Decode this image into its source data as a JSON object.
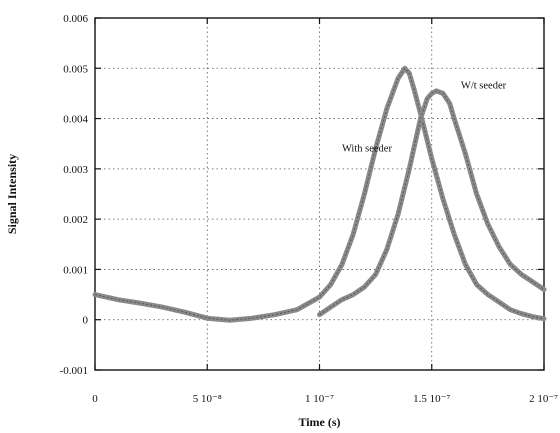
{
  "chart_data": {
    "type": "line",
    "title": "",
    "xlabel": "Time (s)",
    "ylabel": "Signal Intensity",
    "xlim": [
      0,
      2e-07
    ],
    "ylim": [
      -0.001,
      0.006
    ],
    "x_ticks": [
      {
        "value": 0,
        "label": "0"
      },
      {
        "value": 5e-08,
        "label": "5 10⁻⁸"
      },
      {
        "value": 1e-07,
        "label": "1 10⁻⁷"
      },
      {
        "value": 1.5e-07,
        "label": "1.5 10⁻⁷"
      },
      {
        "value": 2e-07,
        "label": "2 10⁻⁷"
      }
    ],
    "y_ticks": [
      {
        "value": -0.001,
        "label": "-0.001"
      },
      {
        "value": 0,
        "label": "0"
      },
      {
        "value": 0.001,
        "label": "0.001"
      },
      {
        "value": 0.002,
        "label": "0.002"
      },
      {
        "value": 0.003,
        "label": "0.003"
      },
      {
        "value": 0.004,
        "label": "0.004"
      },
      {
        "value": 0.005,
        "label": "0.005"
      },
      {
        "value": 0.006,
        "label": "0.006"
      }
    ],
    "grid": true,
    "series": [
      {
        "name": "With seeder",
        "color": "#8a8a8a",
        "x": [
          0,
          1e-08,
          2e-08,
          3e-08,
          4e-08,
          5e-08,
          6e-08,
          7e-08,
          8e-08,
          9e-08,
          1e-07,
          1.05e-07,
          1.1e-07,
          1.15e-07,
          1.2e-07,
          1.25e-07,
          1.3e-07,
          1.35e-07,
          1.38e-07,
          1.4e-07,
          1.42e-07,
          1.45e-07,
          1.5e-07,
          1.55e-07,
          1.6e-07,
          1.65e-07,
          1.7e-07,
          1.75e-07,
          1.8e-07,
          1.85e-07,
          1.9e-07,
          1.95e-07,
          2e-07
        ],
        "y": [
          0.0005,
          0.0004,
          0.00033,
          0.00025,
          0.00015,
          3e-05,
          -1e-05,
          3e-05,
          0.0001,
          0.0002,
          0.00045,
          0.0007,
          0.0011,
          0.0017,
          0.0025,
          0.0034,
          0.0042,
          0.0048,
          0.005,
          0.0049,
          0.0046,
          0.0041,
          0.0032,
          0.0024,
          0.0017,
          0.0011,
          0.0007,
          0.0005,
          0.00035,
          0.0002,
          0.00012,
          6e-05,
          2e-05
        ]
      },
      {
        "name": "W/t seeder",
        "color": "#8a8a8a",
        "x": [
          1e-07,
          1.05e-07,
          1.1e-07,
          1.15e-07,
          1.2e-07,
          1.25e-07,
          1.3e-07,
          1.35e-07,
          1.4e-07,
          1.43e-07,
          1.45e-07,
          1.48e-07,
          1.5e-07,
          1.52e-07,
          1.55e-07,
          1.58e-07,
          1.6e-07,
          1.65e-07,
          1.7e-07,
          1.75e-07,
          1.8e-07,
          1.85e-07,
          1.9e-07,
          1.95e-07,
          2e-07
        ],
        "y": [
          0.0001,
          0.00025,
          0.0004,
          0.0005,
          0.00065,
          0.0009,
          0.0014,
          0.0021,
          0.003,
          0.0036,
          0.004,
          0.0044,
          0.0045,
          0.00455,
          0.0045,
          0.0043,
          0.004,
          0.0033,
          0.0025,
          0.0019,
          0.00145,
          0.0011,
          0.0009,
          0.00075,
          0.0006
        ]
      }
    ],
    "annotations": [
      {
        "text": "With seeder",
        "x": 1.1e-07,
        "y": 0.00335
      },
      {
        "text": "W/t seeder",
        "x": 1.63e-07,
        "y": 0.0046
      }
    ]
  }
}
